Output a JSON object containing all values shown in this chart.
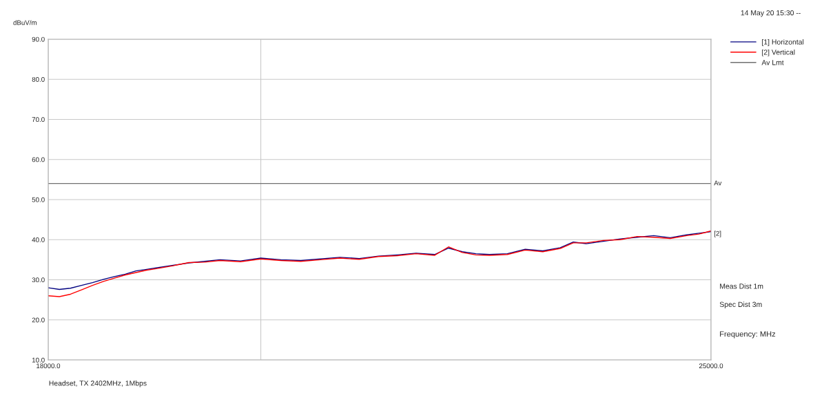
{
  "chart_data": {
    "type": "line",
    "ylabel": "dBuV/m",
    "xlabel": "Frequency: MHz",
    "x": [
      18000,
      18100,
      18200,
      18300,
      18400,
      18500,
      18600,
      18700,
      18800,
      18900,
      19000,
      19150,
      19300,
      19450,
      19600,
      19800,
      20000,
      20200,
      20400,
      20600,
      20800,
      21000,
      21200,
      21400,
      21600,
      21800,
      21950,
      22100,
      22250,
      22400,
      22600,
      22800,
      23000,
      23200,
      23350,
      23500,
      23700,
      23900,
      24100,
      24300,
      24500,
      24700,
      24850,
      25000
    ],
    "series": [
      {
        "name": "[1] Horizontal",
        "color": "#000080",
        "values": [
          28,
          27.6,
          27.9,
          28.6,
          29.3,
          30.1,
          30.8,
          31.4,
          32.2,
          32.6,
          33.0,
          33.6,
          34.2,
          34.6,
          35.0,
          34.7,
          35.4,
          35.0,
          34.8,
          35.2,
          35.6,
          35.3,
          35.9,
          36.2,
          36.6,
          36.3,
          37.9,
          37.0,
          36.5,
          36.3,
          36.5,
          37.6,
          37.2,
          38.0,
          39.4,
          39.0,
          39.6,
          40.2,
          40.6,
          41.0,
          40.5,
          41.2,
          41.6,
          42.0
        ]
      },
      {
        "name": "[2] Vertical",
        "color": "#ff0000",
        "values": [
          26.0,
          25.8,
          26.4,
          27.5,
          28.6,
          29.6,
          30.4,
          31.2,
          31.8,
          32.4,
          32.8,
          33.5,
          34.3,
          34.4,
          34.8,
          34.5,
          35.2,
          34.8,
          34.6,
          35.0,
          35.4,
          35.1,
          35.8,
          36.0,
          36.5,
          36.1,
          38.2,
          36.8,
          36.2,
          36.1,
          36.3,
          37.4,
          37.0,
          37.8,
          39.2,
          39.2,
          39.8,
          40.0,
          40.8,
          40.6,
          40.3,
          41.0,
          41.4,
          42.2
        ]
      },
      {
        "name": "Av Lmt",
        "color": "#707070",
        "x": [
          18000,
          25000
        ],
        "values": [
          54,
          54
        ]
      }
    ],
    "log": "x",
    "xlim": [
      18000,
      25000
    ],
    "xticks": [
      {
        "value": 18000,
        "label": "18000.0"
      },
      {
        "value": 20000,
        "label": null
      },
      {
        "value": 25000,
        "label": "25000.0"
      }
    ],
    "ylim": [
      10,
      90
    ],
    "yticks": [
      {
        "value": 10,
        "label": "10.0"
      },
      {
        "value": 20,
        "label": "20.0"
      },
      {
        "value": 30,
        "label": "30.0"
      },
      {
        "value": 40,
        "label": "40.0"
      },
      {
        "value": 50,
        "label": "50.0"
      },
      {
        "value": 60,
        "label": "60.0"
      },
      {
        "value": 70,
        "label": "70.0"
      },
      {
        "value": 80,
        "label": "80.0"
      },
      {
        "value": 90,
        "label": "90.0"
      }
    ],
    "grid": true,
    "legend": "top right",
    "annotations": [
      {
        "text": "Av",
        "x": 25000,
        "y": 54
      },
      {
        "text": "[2]",
        "x": 25000,
        "y": 41.4
      },
      "14 May 20 15:30 --",
      "Meas Dist 1m",
      "Spec Dist 3m",
      "Headset, TX 2402MHz, 1Mbps"
    ]
  }
}
